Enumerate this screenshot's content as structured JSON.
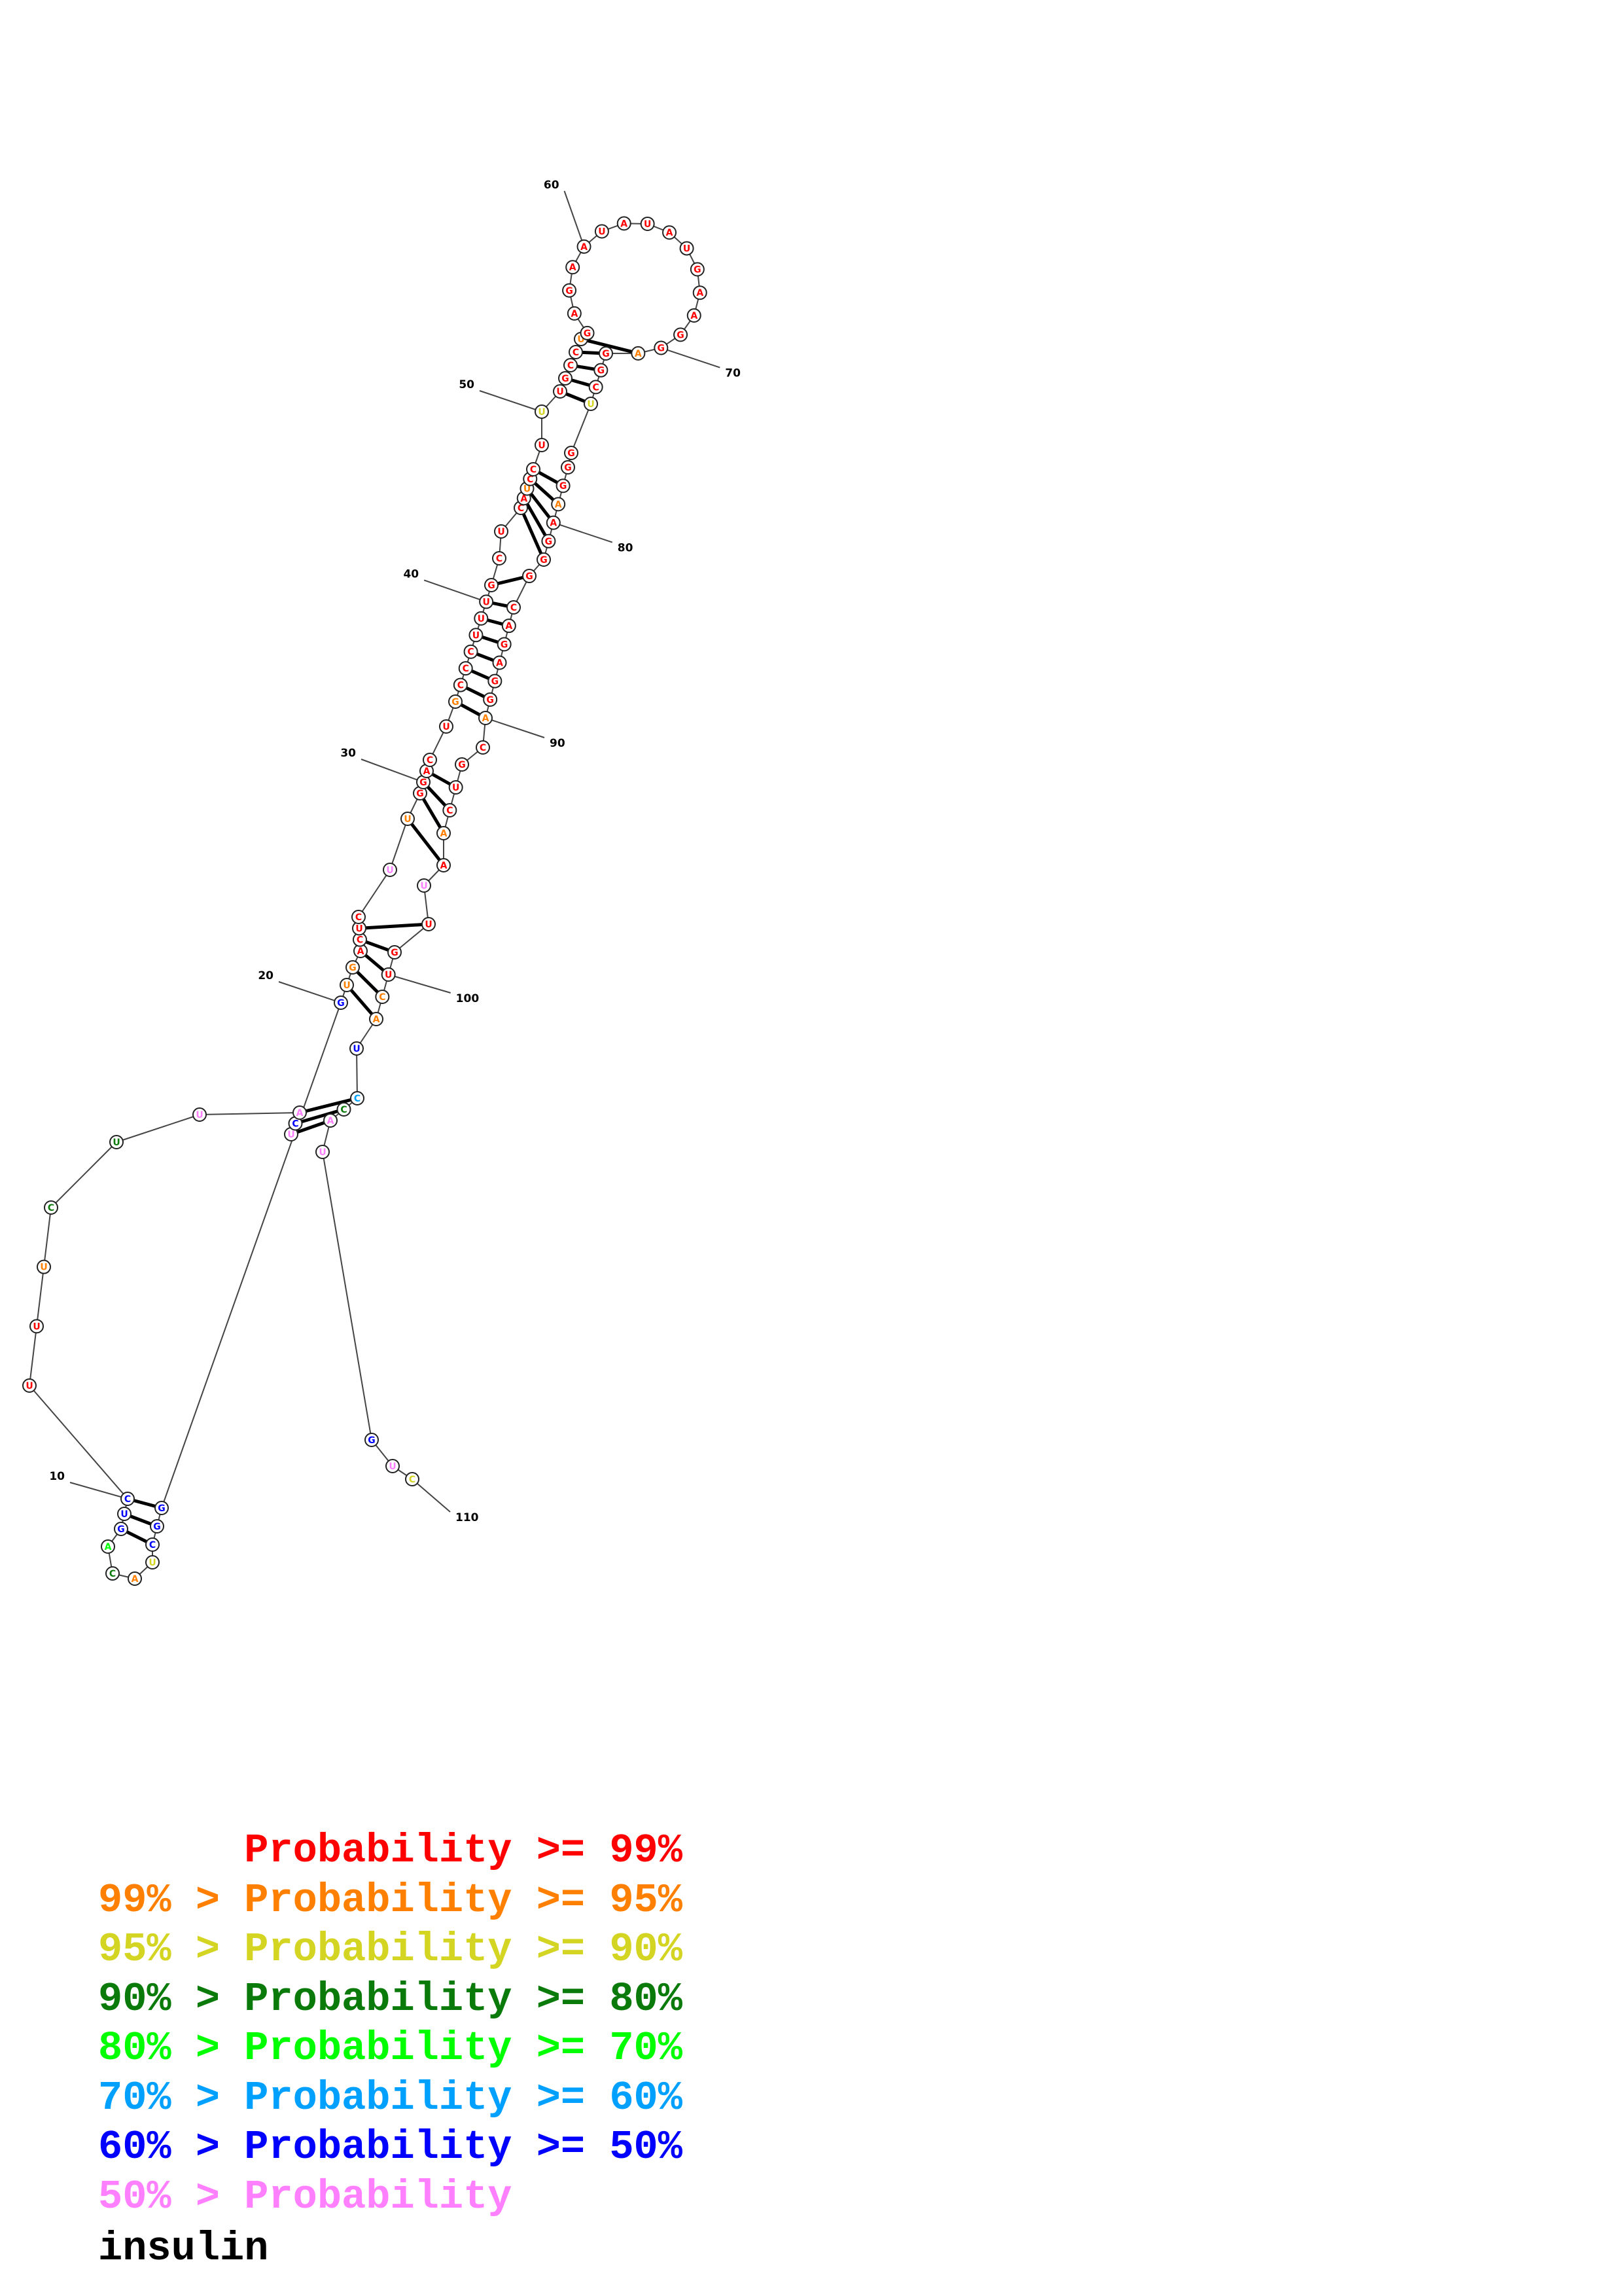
{
  "title": "insulin",
  "colors": {
    "p99": "#ff0000",
    "p95": "#ff8000",
    "p90": "#d4d422",
    "p80": "#0a7a0a",
    "p70": "#00ff00",
    "p60": "#00a0ff",
    "p50": "#0000ff",
    "plow": "#ff80ff"
  },
  "legend": [
    {
      "text": "      Probability >= 99%",
      "color": "p99"
    },
    {
      "text": "99% > Probability >= 95%",
      "color": "p95"
    },
    {
      "text": "95% > Probability >= 90%",
      "color": "p90"
    },
    {
      "text": "90% > Probability >= 80%",
      "color": "p80"
    },
    {
      "text": "80% > Probability >= 70%",
      "color": "p70"
    },
    {
      "text": "70% > Probability >= 60%",
      "color": "p60"
    },
    {
      "text": "60% > Probability >= 50%",
      "color": "p50"
    },
    {
      "text": "50% > Probability",
      "color": "plow"
    }
  ],
  "position_labels": [
    "10",
    "20",
    "30",
    "40",
    "50",
    "60",
    "70",
    "80",
    "90",
    "100",
    "110"
  ],
  "nucleotides": [
    {
      "base": "U",
      "p": "plow"
    },
    {
      "base": "C",
      "p": "p50"
    },
    {
      "base": "A",
      "p": "plow"
    },
    {
      "base": "U",
      "p": "plow"
    },
    {
      "base": "U",
      "p": "p80"
    },
    {
      "base": "C",
      "p": "p80"
    },
    {
      "base": "U",
      "p": "p95"
    },
    {
      "base": "U",
      "p": "p99"
    },
    {
      "base": "U",
      "p": "p99"
    },
    {
      "base": "C",
      "p": "p50"
    },
    {
      "base": "U",
      "p": "p50"
    },
    {
      "base": "G",
      "p": "p50"
    },
    {
      "base": "A",
      "p": "p70"
    },
    {
      "base": "C",
      "p": "p80"
    },
    {
      "base": "A",
      "p": "p95"
    },
    {
      "base": "U",
      "p": "p90"
    },
    {
      "base": "C",
      "p": "p50"
    },
    {
      "base": "G",
      "p": "p50"
    },
    {
      "base": "G",
      "p": "p50"
    },
    {
      "base": "G",
      "p": "p50"
    },
    {
      "base": "U",
      "p": "p95"
    },
    {
      "base": "G",
      "p": "p95"
    },
    {
      "base": "A",
      "p": "p99"
    },
    {
      "base": "C",
      "p": "p99"
    },
    {
      "base": "U",
      "p": "p99"
    },
    {
      "base": "C",
      "p": "p99"
    },
    {
      "base": "U",
      "p": "plow"
    },
    {
      "base": "U",
      "p": "p95"
    },
    {
      "base": "G",
      "p": "p99"
    },
    {
      "base": "G",
      "p": "p99"
    },
    {
      "base": "A",
      "p": "p99"
    },
    {
      "base": "C",
      "p": "p99"
    },
    {
      "base": "U",
      "p": "p99"
    },
    {
      "base": "G",
      "p": "p95"
    },
    {
      "base": "C",
      "p": "p99"
    },
    {
      "base": "C",
      "p": "p99"
    },
    {
      "base": "C",
      "p": "p99"
    },
    {
      "base": "U",
      "p": "p99"
    },
    {
      "base": "U",
      "p": "p99"
    },
    {
      "base": "U",
      "p": "p99"
    },
    {
      "base": "G",
      "p": "p99"
    },
    {
      "base": "C",
      "p": "p99"
    },
    {
      "base": "U",
      "p": "p99"
    },
    {
      "base": "C",
      "p": "p99"
    },
    {
      "base": "A",
      "p": "p99"
    },
    {
      "base": "U",
      "p": "p95"
    },
    {
      "base": "C",
      "p": "p99"
    },
    {
      "base": "C",
      "p": "p99"
    },
    {
      "base": "U",
      "p": "p99"
    },
    {
      "base": "U",
      "p": "p90"
    },
    {
      "base": "U",
      "p": "p99"
    },
    {
      "base": "G",
      "p": "p99"
    },
    {
      "base": "C",
      "p": "p99"
    },
    {
      "base": "C",
      "p": "p99"
    },
    {
      "base": "U",
      "p": "p95"
    },
    {
      "base": "G",
      "p": "p99"
    },
    {
      "base": "A",
      "p": "p99"
    },
    {
      "base": "G",
      "p": "p99"
    },
    {
      "base": "A",
      "p": "p99"
    },
    {
      "base": "A",
      "p": "p99"
    },
    {
      "base": "U",
      "p": "p99"
    },
    {
      "base": "A",
      "p": "p99"
    },
    {
      "base": "U",
      "p": "p99"
    },
    {
      "base": "A",
      "p": "p99"
    },
    {
      "base": "U",
      "p": "p99"
    },
    {
      "base": "G",
      "p": "p99"
    },
    {
      "base": "A",
      "p": "p99"
    },
    {
      "base": "A",
      "p": "p99"
    },
    {
      "base": "G",
      "p": "p99"
    },
    {
      "base": "G",
      "p": "p99"
    },
    {
      "base": "A",
      "p": "p95"
    },
    {
      "base": "G",
      "p": "p99"
    },
    {
      "base": "G",
      "p": "p99"
    },
    {
      "base": "C",
      "p": "p99"
    },
    {
      "base": "U",
      "p": "p90"
    },
    {
      "base": "G",
      "p": "p99"
    },
    {
      "base": "G",
      "p": "p99"
    },
    {
      "base": "G",
      "p": "p99"
    },
    {
      "base": "A",
      "p": "p95"
    },
    {
      "base": "A",
      "p": "p99"
    },
    {
      "base": "G",
      "p": "p99"
    },
    {
      "base": "G",
      "p": "p99"
    },
    {
      "base": "G",
      "p": "p99"
    },
    {
      "base": "C",
      "p": "p99"
    },
    {
      "base": "A",
      "p": "p99"
    },
    {
      "base": "G",
      "p": "p99"
    },
    {
      "base": "A",
      "p": "p99"
    },
    {
      "base": "G",
      "p": "p99"
    },
    {
      "base": "G",
      "p": "p99"
    },
    {
      "base": "A",
      "p": "p95"
    },
    {
      "base": "C",
      "p": "p99"
    },
    {
      "base": "G",
      "p": "p99"
    },
    {
      "base": "U",
      "p": "p99"
    },
    {
      "base": "C",
      "p": "p99"
    },
    {
      "base": "A",
      "p": "p95"
    },
    {
      "base": "A",
      "p": "p99"
    },
    {
      "base": "U",
      "p": "plow"
    },
    {
      "base": "U",
      "p": "p99"
    },
    {
      "base": "G",
      "p": "p99"
    },
    {
      "base": "U",
      "p": "p99"
    },
    {
      "base": "C",
      "p": "p95"
    },
    {
      "base": "A",
      "p": "p95"
    },
    {
      "base": "U",
      "p": "p50"
    },
    {
      "base": "C",
      "p": "p60"
    },
    {
      "base": "C",
      "p": "p80"
    },
    {
      "base": "A",
      "p": "plow"
    },
    {
      "base": "U",
      "p": "plow"
    },
    {
      "base": "G",
      "p": "p50"
    },
    {
      "base": "U",
      "p": "plow"
    },
    {
      "base": "C",
      "p": "p90"
    }
  ]
}
